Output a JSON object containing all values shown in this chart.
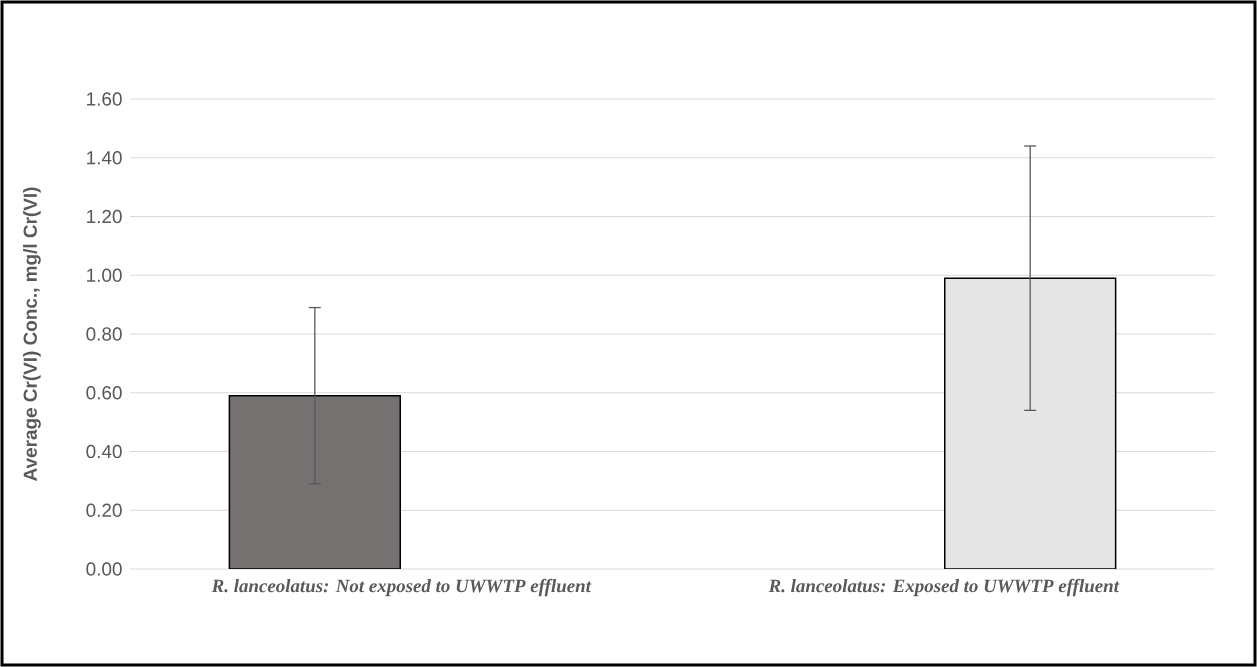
{
  "chart_data": {
    "type": "bar",
    "ylabel": "Average Cr(VI) Conc., mg/l Cr(VI)",
    "categories": [
      "R. lanceolatus: Not exposed to UWWTP effluent",
      "R. lanceolatus: Exposed to UWWTP effluent"
    ],
    "values": [
      0.59,
      0.99
    ],
    "errors": [
      0.3,
      0.45
    ],
    "colors": [
      "#767171",
      "#e7e6e6"
    ],
    "ylim": [
      0,
      1.6
    ],
    "yticks": [
      {
        "value": 0,
        "label": "0.00"
      },
      {
        "value": 0.2,
        "label": "0.20"
      },
      {
        "value": 0.4,
        "label": "0.40"
      },
      {
        "value": 0.6,
        "label": "0.60"
      },
      {
        "value": 0.8,
        "label": "0.80"
      },
      {
        "value": 1.0,
        "label": "1.00"
      },
      {
        "value": 1.2,
        "label": "1.20"
      },
      {
        "value": 1.4,
        "label": "1.40"
      },
      {
        "value": 1.6,
        "label": "1.60"
      }
    ],
    "grid": "y"
  }
}
